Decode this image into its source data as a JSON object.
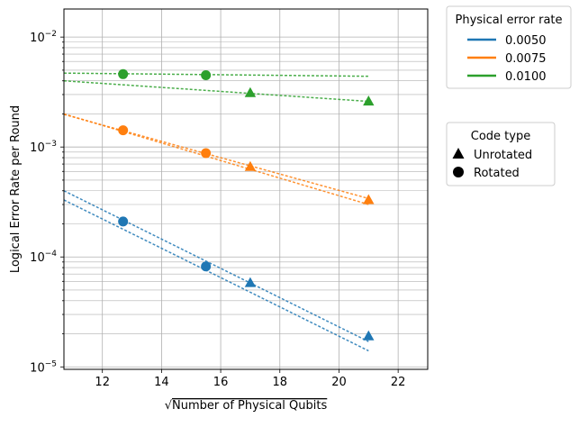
{
  "chart_data": {
    "type": "scatter",
    "title": "",
    "xlabel_prefix": "√",
    "xlabel": "Number of Physical Qubits",
    "ylabel": "Logical Error Rate per Round",
    "yscale": "log",
    "xlim": [
      10.7,
      23.0
    ],
    "ylim": [
      9.5e-06,
      0.018
    ],
    "grid": true,
    "x_ticks": [
      12,
      14,
      16,
      18,
      20,
      22
    ],
    "y_ticks": [
      {
        "value": 1e-05,
        "base": "10",
        "exp": "−5"
      },
      {
        "value": 0.0001,
        "base": "10",
        "exp": "−4"
      },
      {
        "value": 0.001,
        "base": "10",
        "exp": "−3"
      },
      {
        "value": 0.01,
        "base": "10",
        "exp": "−2"
      }
    ],
    "series": [
      {
        "name": "0.0050",
        "color": "#1f77b4",
        "rotated_points": [
          {
            "x": 12.7,
            "y": 0.00021
          },
          {
            "x": 15.5,
            "y": 8.2e-05
          }
        ],
        "unrotated_points": [
          {
            "x": 17.0,
            "y": 5.8e-05
          },
          {
            "x": 21.0,
            "y": 1.9e-05
          }
        ],
        "fit_lines": [
          {
            "x": [
              10.7,
              21.0
            ],
            "y": [
              0.00033,
              1.4e-05
            ]
          },
          {
            "x": [
              10.7,
              21.0
            ],
            "y": [
              0.0004,
              1.7e-05
            ]
          }
        ]
      },
      {
        "name": "0.0075",
        "color": "#ff7f0e",
        "rotated_points": [
          {
            "x": 12.7,
            "y": 0.00142
          },
          {
            "x": 15.5,
            "y": 0.00088
          }
        ],
        "unrotated_points": [
          {
            "x": 17.0,
            "y": 0.00066
          },
          {
            "x": 21.0,
            "y": 0.00033
          }
        ],
        "fit_lines": [
          {
            "x": [
              10.7,
              21.0
            ],
            "y": [
              0.002,
              0.0003
            ]
          },
          {
            "x": [
              10.7,
              21.0
            ],
            "y": [
              0.00198,
              0.00034
            ]
          }
        ]
      },
      {
        "name": "0.0100",
        "color": "#2ca02c",
        "rotated_points": [
          {
            "x": 12.7,
            "y": 0.0046
          },
          {
            "x": 15.5,
            "y": 0.0045
          }
        ],
        "unrotated_points": [
          {
            "x": 17.0,
            "y": 0.0031
          },
          {
            "x": 21.0,
            "y": 0.0026
          }
        ],
        "fit_lines": [
          {
            "x": [
              10.7,
              21.0
            ],
            "y": [
              0.0047,
              0.0044
            ]
          },
          {
            "x": [
              10.7,
              21.0
            ],
            "y": [
              0.004,
              0.0026
            ]
          }
        ]
      }
    ],
    "legend_error_rate": {
      "title": "Physical error rate",
      "placement": "outside-top-right",
      "entries": [
        "0.0050",
        "0.0075",
        "0.0100"
      ]
    },
    "legend_code_type": {
      "title": "Code type",
      "placement": "outside-right",
      "entries": [
        {
          "label": "Unrotated",
          "marker": "triangle"
        },
        {
          "label": "Rotated",
          "marker": "circle"
        }
      ]
    }
  }
}
